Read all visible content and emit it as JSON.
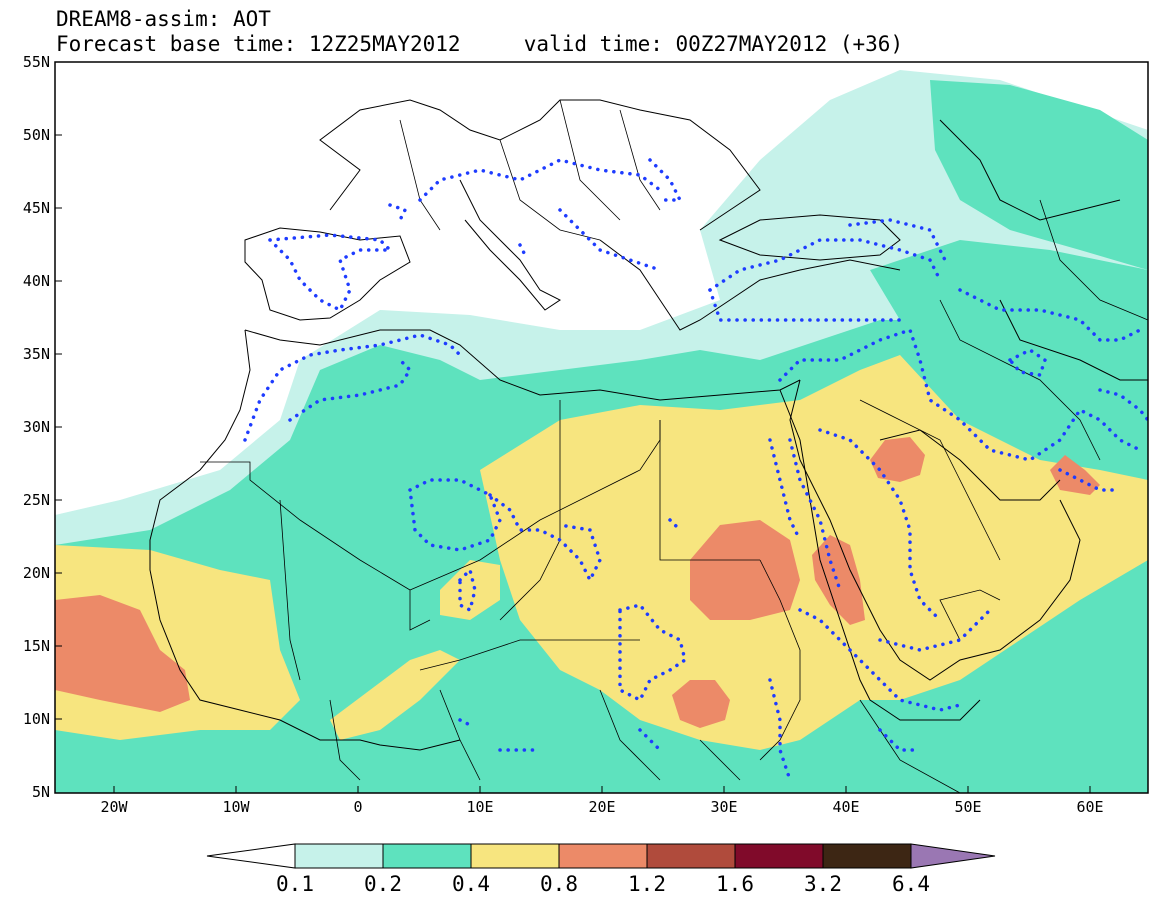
{
  "title": {
    "line1": "DREAM8-assim: AOT",
    "line2": "Forecast base time: 12Z25MAY2012     valid time: 00Z27MAY2012 (+36)"
  },
  "lat_labels": [
    "55N",
    "50N",
    "45N",
    "40N",
    "35N",
    "30N",
    "25N",
    "20N",
    "15N",
    "10N",
    "5N"
  ],
  "lon_labels": [
    "20W",
    "10W",
    "0",
    "10E",
    "20E",
    "30E",
    "40E",
    "50E",
    "60E"
  ],
  "colorbar": {
    "labels": [
      "0.1",
      "0.2",
      "0.4",
      "0.8",
      "1.2",
      "1.6",
      "3.2",
      "6.4"
    ],
    "colors": [
      "#ffffff",
      "#c6f2ea",
      "#5ee2be",
      "#f7e57f",
      "#ec8a68",
      "#b04b3c",
      "#800a2a",
      "#3d2614",
      "#9a77b3"
    ]
  },
  "colors": {
    "aot_0_1": "#c6f2ea",
    "aot_0_2": "#5ee2be",
    "aot_0_4": "#f7e57f",
    "aot_0_8": "#ec8a68",
    "dotted_contour": "#1e3cff",
    "borders": "#000000"
  }
}
